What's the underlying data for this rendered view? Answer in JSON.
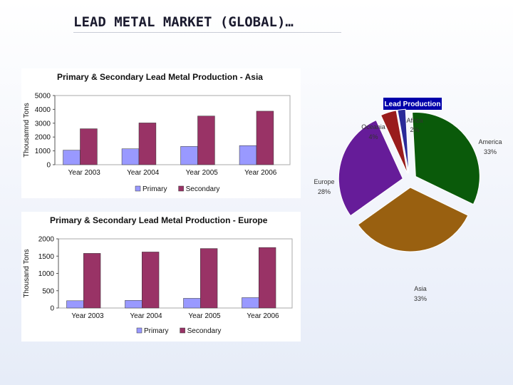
{
  "slide": {
    "title": "LEAD METAL MARKET (GLOBAL)…"
  },
  "colors": {
    "primary": "#9999ff",
    "secondary": "#993366"
  },
  "chart_data": [
    {
      "type": "bar",
      "title": "Primary & Secondary Lead Metal Production - Asia",
      "ylabel": "Thousamnd Tons",
      "xlabel": "",
      "categories": [
        "Year 2003",
        "Year 2004",
        "Year 2005",
        "Year 2006"
      ],
      "series": [
        {
          "name": "Primary",
          "values": [
            1050,
            1150,
            1320,
            1380
          ]
        },
        {
          "name": "Secondary",
          "values": [
            2600,
            3020,
            3520,
            3870
          ]
        }
      ],
      "ylim": [
        0,
        5000
      ],
      "yticks": [
        "0",
        "1000",
        "2000",
        "3000",
        "4000",
        "5000"
      ],
      "grid": false,
      "legend": "bottom"
    },
    {
      "type": "bar",
      "title": "Primary & Secondary Lead Metal Production - Europe",
      "ylabel": "Thousand Tons",
      "xlabel": "",
      "categories": [
        "Year 2003",
        "Year 2004",
        "Year 2005",
        "Year 2006"
      ],
      "series": [
        {
          "name": "Primary",
          "values": [
            210,
            220,
            280,
            300
          ]
        },
        {
          "name": "Secondary",
          "values": [
            1580,
            1620,
            1720,
            1750
          ]
        }
      ],
      "ylim": [
        0,
        2000
      ],
      "yticks": [
        "0",
        "500",
        "1000",
        "1500",
        "2000"
      ],
      "grid": false,
      "legend": "bottom"
    },
    {
      "type": "pie",
      "title": "Lead Production",
      "exploded": true,
      "slices": [
        {
          "label": "America",
          "value": 33,
          "value_label": "33%",
          "color": "#0a5a0a"
        },
        {
          "label": "Asia",
          "value": 33,
          "value_label": "33%",
          "color": "#996010"
        },
        {
          "label": "Europe",
          "value": 28,
          "value_label": "28%",
          "color": "#661c99"
        },
        {
          "label": "Oceania",
          "value": 4,
          "value_label": "4%",
          "color": "#991c1c"
        },
        {
          "label": "Africa",
          "value": 2,
          "value_label": "2%",
          "color": "#2a2a99"
        }
      ]
    }
  ]
}
